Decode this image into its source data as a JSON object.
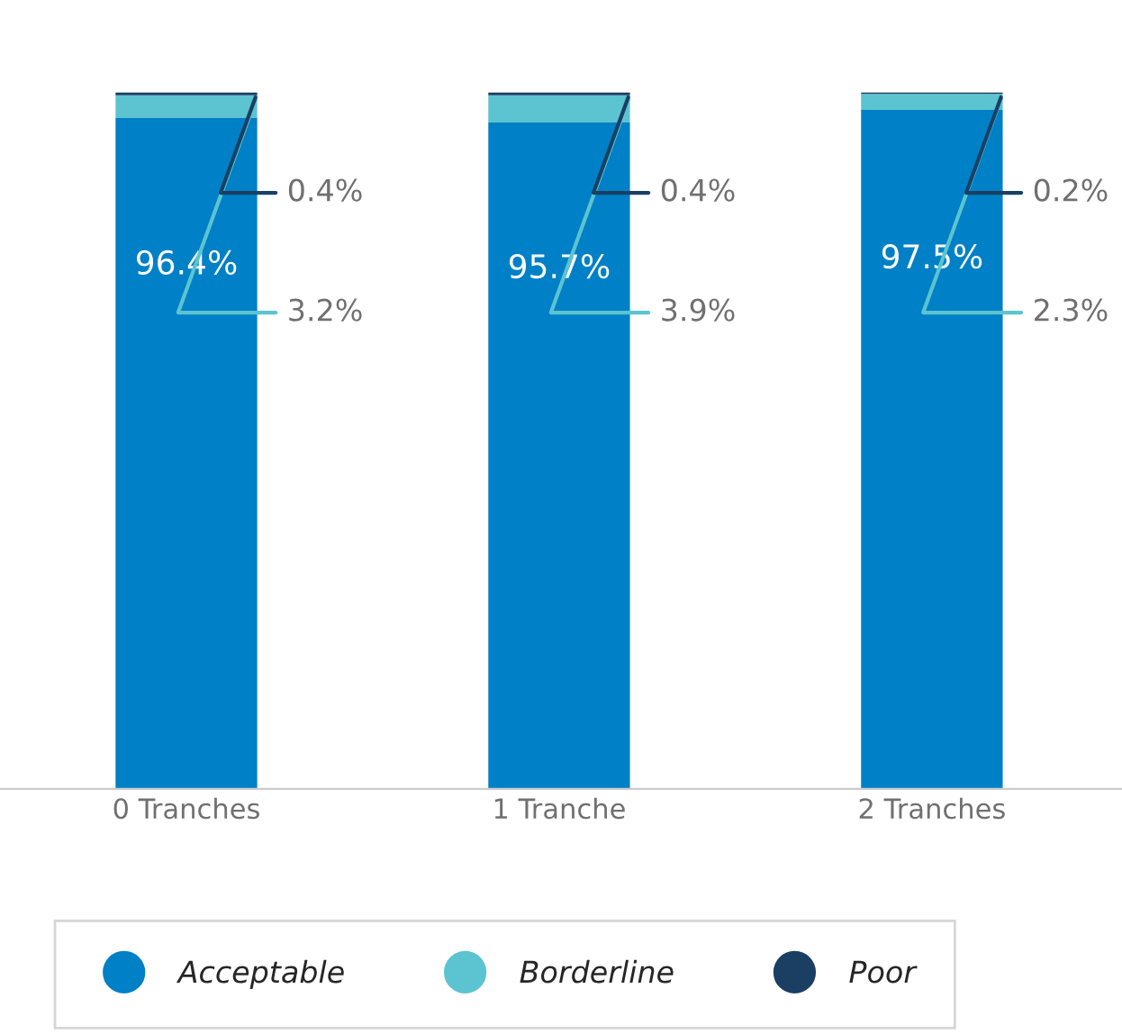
{
  "chart_data": {
    "type": "bar",
    "stacked": true,
    "categories": [
      "0 Tranches",
      "1 Tranche",
      "2 Tranches"
    ],
    "series": [
      {
        "name": "Acceptable",
        "color": "#0080c6",
        "values": [
          96.4,
          95.7,
          97.5
        ],
        "value_labels": [
          "96.4%",
          "95.7%",
          "97.5%"
        ]
      },
      {
        "name": "Borderline",
        "color": "#5bc4d0",
        "values": [
          3.2,
          3.9,
          2.3
        ],
        "value_labels": [
          "3.2%",
          "3.9%",
          "2.3%"
        ]
      },
      {
        "name": "Poor",
        "color": "#1b3f63",
        "values": [
          0.4,
          0.4,
          0.2
        ],
        "value_labels": [
          "0.4%",
          "0.4%",
          "0.2%"
        ]
      }
    ],
    "tick_labels": "x",
    "legend": "bottom",
    "marker": "circle",
    "grid": false
  }
}
